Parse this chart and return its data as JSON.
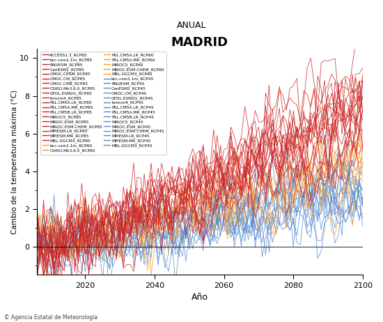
{
  "title": "MADRID",
  "subtitle": "ANUAL",
  "xlabel": "Año",
  "ylabel": "Cambio de la temperatura máxima (°C)",
  "xlim": [
    2006,
    2100
  ],
  "ylim": [
    -1.5,
    10.5
  ],
  "yticks": [
    0,
    2,
    4,
    6,
    8,
    10
  ],
  "xticks": [
    2020,
    2040,
    2060,
    2080,
    2100
  ],
  "footer_left": "© Agencia Estatal de Meteorología",
  "rcp85_color": "#CC2222",
  "rcp60_color": "#FF9922",
  "rcp45_color": "#5588CC",
  "n_rcp85": 19,
  "n_rcp60": 7,
  "n_rcp45": 15,
  "legend_col1": [
    [
      "ACCESS1.3_RCP85",
      "#CC2222"
    ],
    [
      "bcc.csm1.1m_RCP85",
      "#CC2222"
    ],
    [
      "BNUESM_RCP85",
      "#CC2222"
    ],
    [
      "CanESM2_RCP85",
      "#CC2222"
    ],
    [
      "CMOC.CESM_RCP85",
      "#CC2222"
    ],
    [
      "CMOC.CM_RCP85",
      "#CC2222"
    ],
    [
      "CMOC.CM8_RCP85",
      "#CC2222"
    ],
    [
      "CSIRO.Mk3.6.0_RCP85",
      "#CC2222"
    ],
    [
      "GFDL.ESM2G_RCP85",
      "#CC2222"
    ],
    [
      "Inmcm4_RCP85",
      "#CC2222"
    ],
    [
      "PSL.CM5A.LR_RCP85",
      "#CC2222"
    ],
    [
      "PSL.CM5A.MR_RCP85",
      "#CC2222"
    ],
    [
      "PSL.CM5B.LR_RCP85",
      "#CC2222"
    ],
    [
      "MIROC5_RCP85",
      "#CC2222"
    ],
    [
      "MIROC.ESM_RCP85",
      "#CC2222"
    ],
    [
      "MIROC.ESM.CHEM_RCP85",
      "#CC2222"
    ],
    [
      "MPIESM.LR_RCP85",
      "#CC2222"
    ],
    [
      "MPIESM.MR_RCP85",
      "#CC2222"
    ],
    [
      "MRL.OGCM3_RCP85",
      "#CC2222"
    ],
    [
      "bcc.csm1.1m_RCP60",
      "#FF9922"
    ],
    [
      "CSIRO.Mk3.6.0_RCP60",
      "#FF9922"
    ]
  ],
  "legend_col2": [
    [
      "PSL.CM5A.LR_RCP60",
      "#FF9922"
    ],
    [
      "PSL.CM5A.MR_RCP60",
      "#FF9922"
    ],
    [
      "MIROC5_RCP60",
      "#FF9922"
    ],
    [
      "MIROC.ESM.CHEM_RCP60",
      "#FF9922"
    ],
    [
      "MRL.OGCM3_RCP60",
      "#FF9922"
    ],
    [
      "bcc.csm1.1m_RCP45",
      "#5588CC"
    ],
    [
      "BNUESM_RCP45",
      "#5588CC"
    ],
    [
      "CanESM2_RCP45",
      "#5588CC"
    ],
    [
      "CMOC.CM_RCP45",
      "#5588CC"
    ],
    [
      "GFDL.ESM2G_RCP45",
      "#5588CC"
    ],
    [
      "Inmcm4_RCP45",
      "#5588CC"
    ],
    [
      "PSL.CM5A.LR_RCP45",
      "#5588CC"
    ],
    [
      "PSL.CM5A.MR_RCP45",
      "#5588CC"
    ],
    [
      "PSL.CM5B.LR_RCP45",
      "#5588CC"
    ],
    [
      "MIROC5_RCP45",
      "#5588CC"
    ],
    [
      "MIROC.ESM_RCP45",
      "#5588CC"
    ],
    [
      "MIROC.ESM.CHEM_RCP45",
      "#5588CC"
    ],
    [
      "MPIESM.LR_RCP45",
      "#5588CC"
    ],
    [
      "MPIESM.MR_RCP45",
      "#5588CC"
    ],
    [
      "MRL.OGCM3_RCP45",
      "#5588CC"
    ]
  ]
}
